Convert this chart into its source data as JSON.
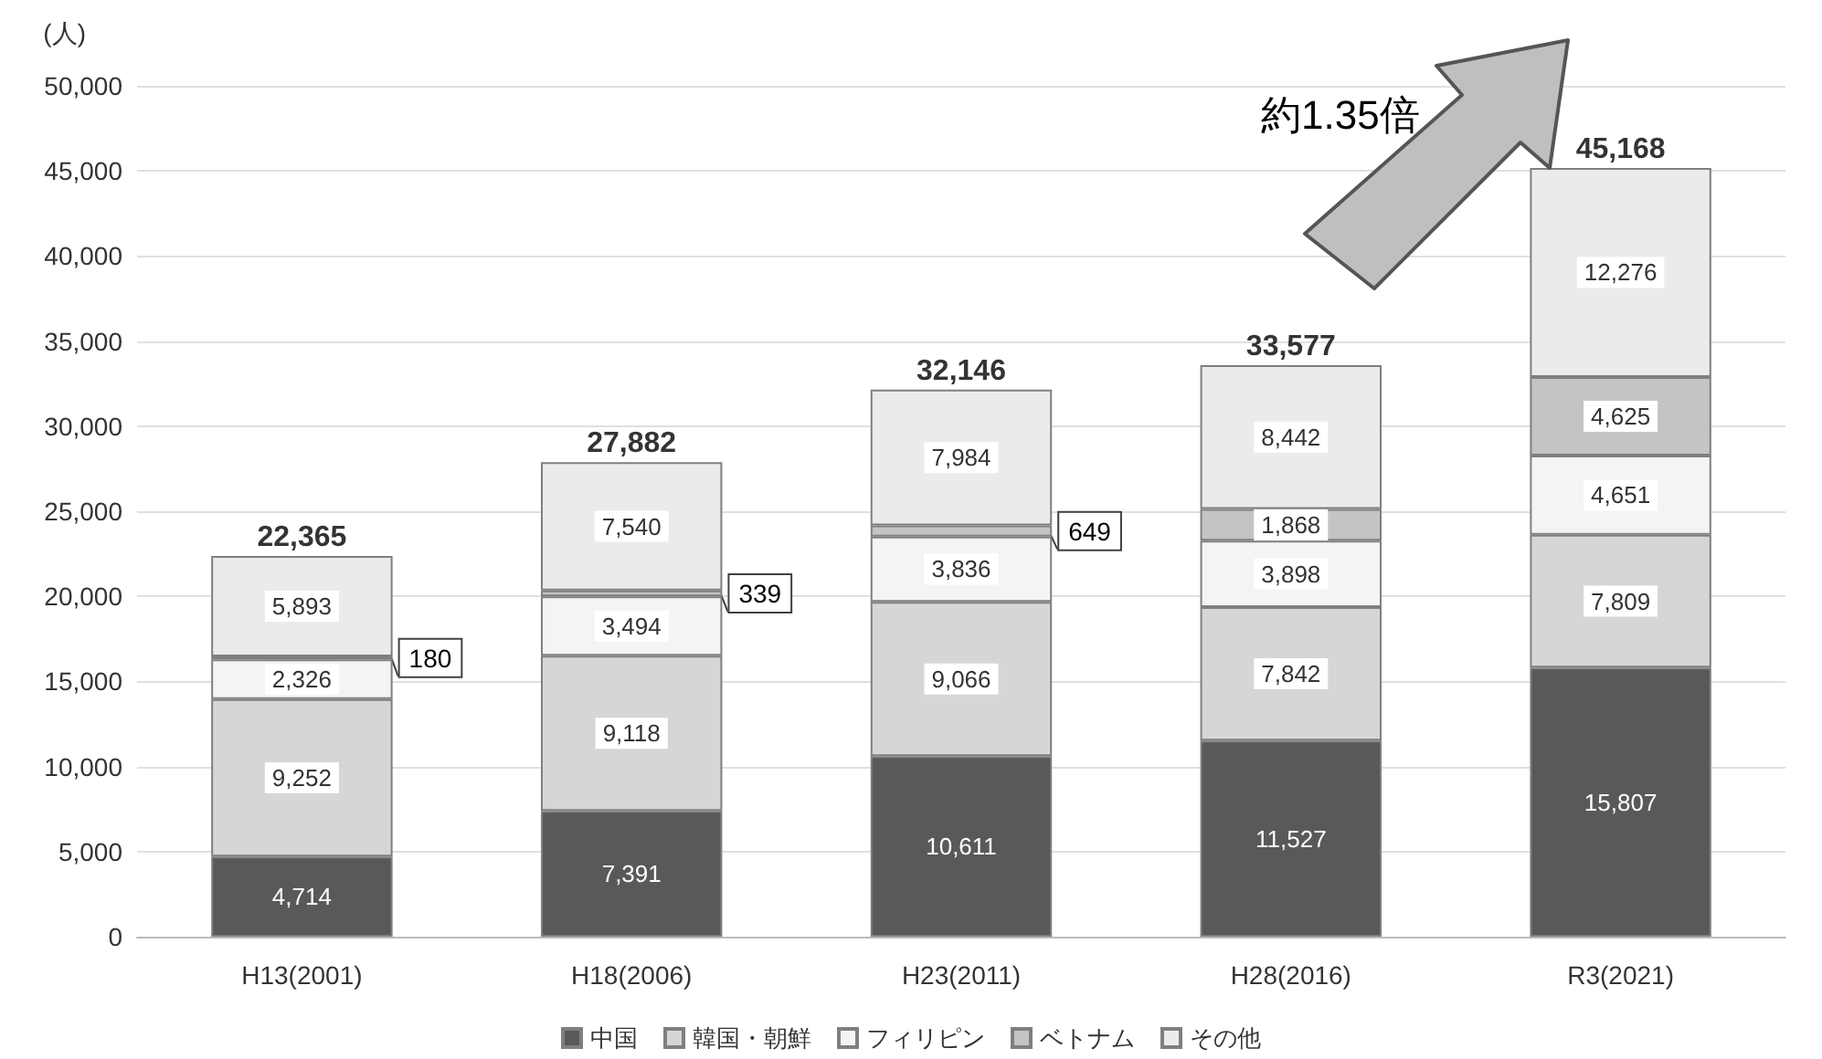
{
  "chart_data": {
    "type": "bar",
    "stacked": true,
    "ylabel": "(人)",
    "categories": [
      "H13(2001)",
      "H18(2006)",
      "H23(2011)",
      "H28(2016)",
      "R3(2021)"
    ],
    "series": [
      {
        "name": "中国",
        "color": "#595959",
        "values": [
          4714,
          7391,
          10611,
          11527,
          15807
        ],
        "value_labels": [
          "4,714",
          "7,391",
          "10,611",
          "11,527",
          "15,807"
        ]
      },
      {
        "name": "韓国・朝鮮",
        "color": "#d6d6d6",
        "values": [
          9252,
          9118,
          9066,
          7842,
          7809
        ],
        "value_labels": [
          "9,252",
          "9,118",
          "9,066",
          "7,842",
          "7,809"
        ]
      },
      {
        "name": "フィリピン",
        "color": "#f4f4f4",
        "values": [
          2326,
          3494,
          3836,
          3898,
          4651
        ],
        "value_labels": [
          "2,326",
          "3,494",
          "3,836",
          "3,898",
          "4,651"
        ]
      },
      {
        "name": "ベトナム",
        "color": "#c4c4c4",
        "values": [
          180,
          339,
          649,
          1868,
          4625
        ],
        "value_labels": [
          "180",
          "339",
          "649",
          "1,868",
          "4,625"
        ]
      },
      {
        "name": "その他",
        "color": "#ebebeb",
        "values": [
          5893,
          7540,
          7984,
          8442,
          12276
        ],
        "value_labels": [
          "5,893",
          "7,540",
          "7,984",
          "8,442",
          "12,276"
        ]
      }
    ],
    "totals": [
      "22,365",
      "27,882",
      "32,146",
      "33,577",
      "45,168"
    ],
    "ylim": [
      0,
      50000
    ],
    "yticks": [
      0,
      {
        "value": 5000,
        "label": "5,000"
      },
      {
        "value": 10000,
        "label": "10,000"
      },
      {
        "value": 15000,
        "label": "15,000"
      },
      {
        "value": 20000,
        "label": "20,000"
      },
      {
        "value": 25000,
        "label": "25,000"
      },
      {
        "value": 30000,
        "label": "30,000"
      },
      {
        "value": 35000,
        "label": "35,000"
      },
      {
        "value": 40000,
        "label": "40,000"
      },
      {
        "value": 45000,
        "label": "45,000"
      },
      {
        "value": 50000,
        "label": "50,000"
      }
    ],
    "grid": "y",
    "legend": "bottom",
    "annotations": [
      "約1.35倍"
    ]
  }
}
